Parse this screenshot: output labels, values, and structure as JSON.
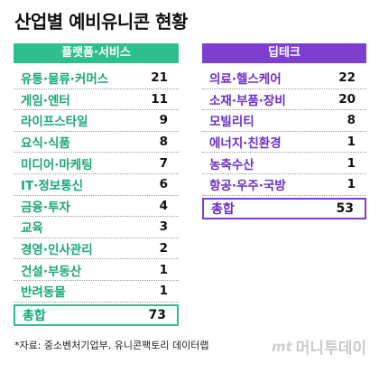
{
  "title": "산업별 예비유니콘 현황",
  "left": {
    "header": "플랫폼·서비스",
    "rows": [
      {
        "label": "유통·물류·커머스",
        "value": "21"
      },
      {
        "label": "게임·엔터",
        "value": "11"
      },
      {
        "label": "라이프스타일",
        "value": "9"
      },
      {
        "label": "요식·식품",
        "value": "8"
      },
      {
        "label": "미디어·마케팅",
        "value": "7"
      },
      {
        "label": "IT·정보통신",
        "value": "6"
      },
      {
        "label": "금융·투자",
        "value": "4"
      },
      {
        "label": "교육",
        "value": "3"
      },
      {
        "label": "경영·인사관리",
        "value": "2"
      },
      {
        "label": "건설·부동산",
        "value": "1"
      },
      {
        "label": "반려동물",
        "value": "1"
      }
    ],
    "total": {
      "label": "총합",
      "value": "73"
    }
  },
  "right": {
    "header": "딥테크",
    "rows": [
      {
        "label": "의료·헬스케어",
        "value": "22"
      },
      {
        "label": "소재·부품·장비",
        "value": "20"
      },
      {
        "label": "모빌리티",
        "value": "8"
      },
      {
        "label": "에너지·친환경",
        "value": "1"
      },
      {
        "label": "농축수산",
        "value": "1"
      },
      {
        "label": "항공·우주·국방",
        "value": "1"
      }
    ],
    "total": {
      "label": "총합",
      "value": "53"
    }
  },
  "footnote": "*자료: 중소벤처기업부, 유니콘팩토리 데이터랩",
  "logo": {
    "mark": "mt",
    "text": "머니투데이"
  }
}
